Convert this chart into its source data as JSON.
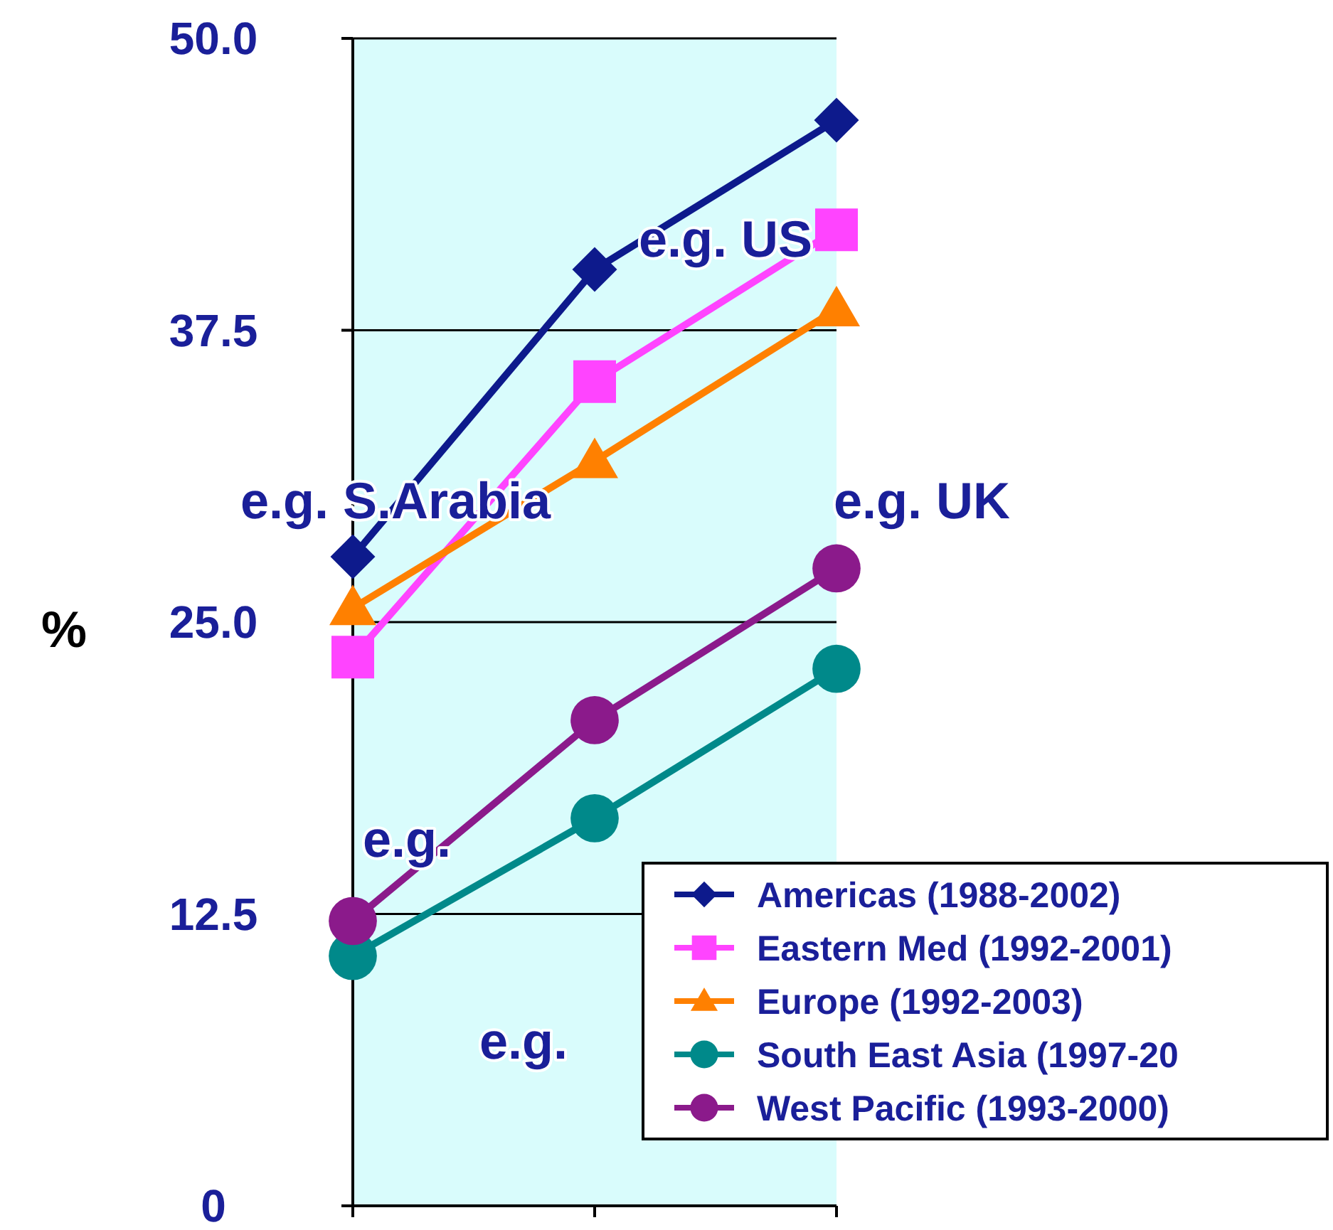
{
  "chart_data": {
    "type": "line",
    "ylabel": "%",
    "categories": [
      null,
      null,
      null
    ],
    "series": [
      {
        "name": "Americas (1988-2002)",
        "color": "#0d1a8c",
        "marker": "diamond",
        "values": [
          27.8,
          40.1,
          46.5
        ]
      },
      {
        "name": "Eastern Med (1992-2001)",
        "color": "#ff44ff",
        "marker": "square",
        "values": [
          23.5,
          35.3,
          41.8
        ]
      },
      {
        "name": "Europe (1992-2003)",
        "color": "#ff8000",
        "marker": "triangle",
        "values": [
          25.6,
          31.9,
          38.4
        ]
      },
      {
        "name": "South East Asia (1997-20",
        "color": "#00898a",
        "marker": "circle",
        "values": [
          10.7,
          16.6,
          23.0
        ]
      },
      {
        "name": "West Pacific (1993-2000)",
        "color": "#8b1a8b",
        "marker": "circle",
        "values": [
          12.2,
          20.8,
          27.3
        ]
      }
    ],
    "ylim": [
      0,
      50
    ],
    "yticks": [
      0,
      12.5,
      {
        "value": 25,
        "label": "25.0"
      },
      37.5,
      {
        "value": 50,
        "label": "50.0"
      }
    ],
    "grid": "y",
    "legend": "bottom right",
    "line_style": "solid",
    "annotations": [
      "e.g. US",
      "e.g. S.Arabia",
      "e.g. UK",
      "e.g.",
      "e.g."
    ]
  }
}
